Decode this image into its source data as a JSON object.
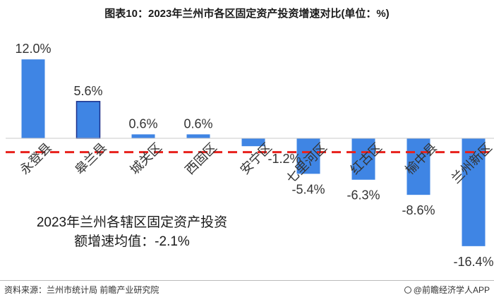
{
  "title": "图表10：2023年兰州市各区固定资产投资增速对比(单位：%)",
  "chart_data": {
    "type": "bar",
    "title": "图表10：2023年兰州市各区固定资产投资增速对比(单位：%)",
    "unit": "%",
    "categories": [
      "永登县",
      "皋兰县",
      "城关区",
      "西固区",
      "安宁区",
      "七里河区",
      "红古区",
      "榆中县",
      "兰州新区"
    ],
    "values": [
      12.0,
      5.6,
      0.6,
      0.6,
      -1.2,
      -5.4,
      -6.3,
      -8.6,
      -16.4
    ],
    "value_labels": [
      "12.0%",
      "5.6%",
      "0.6%",
      "0.6%",
      "-1.2%",
      "-5.4%",
      "-6.3%",
      "-8.6%",
      "-16.4%"
    ],
    "reference_line": {
      "value": -2.1,
      "style": "dashed",
      "color": "#e8211c"
    },
    "ylim": [
      -18,
      13
    ],
    "grid": false,
    "bar_color": "#3f85e4",
    "highlight_bar_border": "#1a2f8a"
  },
  "annotation": {
    "line1": "2023年兰州各辖区固定资产投资",
    "line2": "额增速均值：-2.1%"
  },
  "source": "资料来源：兰州市统计局 前瞻产业研究院",
  "brand": "@前瞻经济学人APP"
}
